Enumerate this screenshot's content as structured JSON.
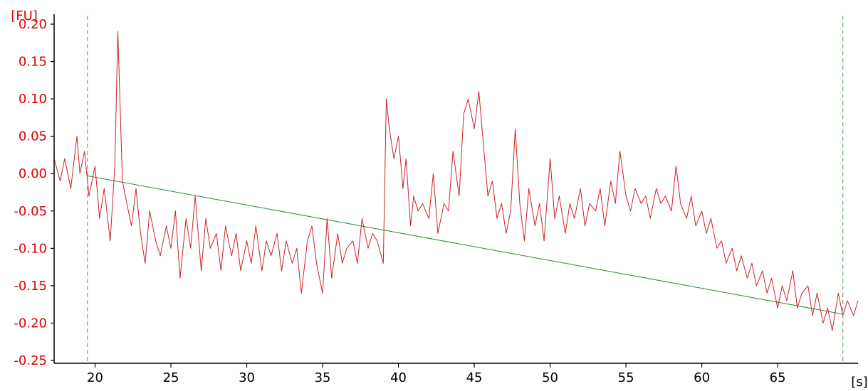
{
  "chart_data": {
    "type": "line",
    "ylabel": "[FU]",
    "xlabel": "[s]",
    "xlim": [
      17.3,
      70.3
    ],
    "ylim": [
      -0.25,
      0.2
    ],
    "yticks": [
      0.2,
      0.15,
      0.1,
      0.05,
      0.0,
      -0.05,
      -0.1,
      -0.15,
      -0.2,
      -0.25
    ],
    "ytick_labels": [
      "0.20",
      "0.15",
      "0.10",
      "0.05",
      "0.00",
      "-0.05",
      "-0.10",
      "-0.15",
      "-0.20",
      "-0.25"
    ],
    "xticks": [
      20,
      25,
      30,
      35,
      40,
      45,
      50,
      55,
      60,
      65
    ],
    "xtick_labels": [
      "20",
      "25",
      "30",
      "35",
      "40",
      "45",
      "50",
      "55",
      "60",
      "65"
    ],
    "axis_color": "#000000",
    "ytick_color": "#dd0000",
    "grid": false,
    "legend": "none",
    "signal": {
      "color": "#cc2222",
      "x": [
        17.3,
        17.7,
        18.0,
        18.4,
        18.8,
        19.0,
        19.3,
        19.6,
        20.0,
        20.3,
        20.6,
        21.0,
        21.3,
        21.5,
        21.8,
        22.1,
        22.4,
        22.7,
        23.0,
        23.3,
        23.6,
        24.0,
        24.3,
        24.7,
        25.0,
        25.3,
        25.6,
        26.0,
        26.3,
        26.6,
        27.0,
        27.3,
        27.6,
        28.0,
        28.3,
        28.6,
        29.0,
        29.3,
        29.6,
        30.0,
        30.3,
        30.6,
        31.0,
        31.3,
        31.6,
        32.0,
        32.3,
        32.6,
        33.0,
        33.3,
        33.6,
        34.0,
        34.3,
        34.6,
        35.0,
        35.3,
        35.6,
        36.0,
        36.3,
        36.6,
        37.0,
        37.3,
        37.6,
        38.0,
        38.3,
        38.6,
        39.0,
        39.2,
        39.4,
        39.7,
        40.0,
        40.3,
        40.5,
        40.8,
        41.0,
        41.3,
        41.6,
        42.0,
        42.3,
        42.6,
        43.0,
        43.3,
        43.6,
        44.0,
        44.3,
        44.6,
        45.0,
        45.3,
        45.6,
        45.9,
        46.2,
        46.5,
        46.8,
        47.1,
        47.4,
        47.7,
        48.0,
        48.3,
        48.6,
        49.0,
        49.3,
        49.6,
        50.0,
        50.3,
        50.6,
        51.0,
        51.3,
        51.6,
        52.0,
        52.3,
        52.6,
        53.0,
        53.3,
        53.6,
        54.0,
        54.3,
        54.6,
        55.0,
        55.3,
        55.6,
        56.0,
        56.3,
        56.6,
        57.0,
        57.3,
        57.6,
        58.0,
        58.3,
        58.6,
        59.0,
        59.3,
        59.6,
        60.0,
        60.3,
        60.6,
        61.0,
        61.3,
        61.6,
        62.0,
        62.3,
        62.6,
        63.0,
        63.3,
        63.6,
        64.0,
        64.3,
        64.6,
        65.0,
        65.3,
        65.6,
        66.0,
        66.3,
        66.6,
        67.0,
        67.3,
        67.6,
        68.0,
        68.3,
        68.6,
        69.0,
        69.3,
        69.6,
        70.0,
        70.3
      ],
      "y": [
        0.02,
        -0.01,
        0.02,
        -0.02,
        0.05,
        0.0,
        0.03,
        -0.03,
        0.01,
        -0.06,
        -0.02,
        -0.09,
        0.01,
        0.19,
        -0.01,
        -0.04,
        -0.07,
        -0.02,
        -0.08,
        -0.12,
        -0.05,
        -0.09,
        -0.11,
        -0.07,
        -0.1,
        -0.05,
        -0.14,
        -0.06,
        -0.1,
        -0.03,
        -0.13,
        -0.06,
        -0.1,
        -0.08,
        -0.13,
        -0.07,
        -0.11,
        -0.08,
        -0.13,
        -0.09,
        -0.12,
        -0.07,
        -0.13,
        -0.09,
        -0.11,
        -0.08,
        -0.13,
        -0.09,
        -0.12,
        -0.1,
        -0.16,
        -0.09,
        -0.07,
        -0.12,
        -0.16,
        -0.06,
        -0.14,
        -0.08,
        -0.12,
        -0.1,
        -0.09,
        -0.12,
        -0.06,
        -0.1,
        -0.08,
        -0.09,
        -0.12,
        0.1,
        0.06,
        0.02,
        0.05,
        -0.02,
        0.02,
        -0.07,
        -0.03,
        -0.05,
        -0.04,
        -0.06,
        0.0,
        -0.08,
        -0.04,
        -0.05,
        0.03,
        -0.03,
        0.08,
        0.1,
        0.06,
        0.11,
        0.04,
        -0.03,
        -0.01,
        -0.06,
        -0.04,
        -0.08,
        -0.05,
        0.06,
        -0.04,
        -0.09,
        -0.02,
        -0.07,
        -0.04,
        -0.09,
        0.02,
        -0.06,
        -0.03,
        -0.08,
        -0.04,
        -0.06,
        -0.02,
        -0.07,
        -0.04,
        -0.05,
        -0.02,
        -0.07,
        -0.01,
        -0.04,
        0.03,
        -0.03,
        -0.05,
        -0.02,
        -0.04,
        -0.03,
        -0.06,
        -0.02,
        -0.04,
        -0.03,
        -0.05,
        0.01,
        -0.04,
        -0.06,
        -0.03,
        -0.07,
        -0.05,
        -0.08,
        -0.06,
        -0.1,
        -0.09,
        -0.12,
        -0.1,
        -0.13,
        -0.11,
        -0.14,
        -0.12,
        -0.15,
        -0.13,
        -0.16,
        -0.14,
        -0.18,
        -0.15,
        -0.17,
        -0.13,
        -0.18,
        -0.16,
        -0.15,
        -0.19,
        -0.16,
        -0.2,
        -0.18,
        -0.21,
        -0.16,
        -0.19,
        -0.17,
        -0.19,
        -0.17
      ]
    },
    "trend": {
      "color": "#2e8b2e",
      "x": [
        19.5,
        69.3
      ],
      "y": [
        -0.003,
        -0.188
      ]
    },
    "markers": {
      "color": "#4a9a4a",
      "x": [
        19.5,
        69.3
      ]
    }
  }
}
